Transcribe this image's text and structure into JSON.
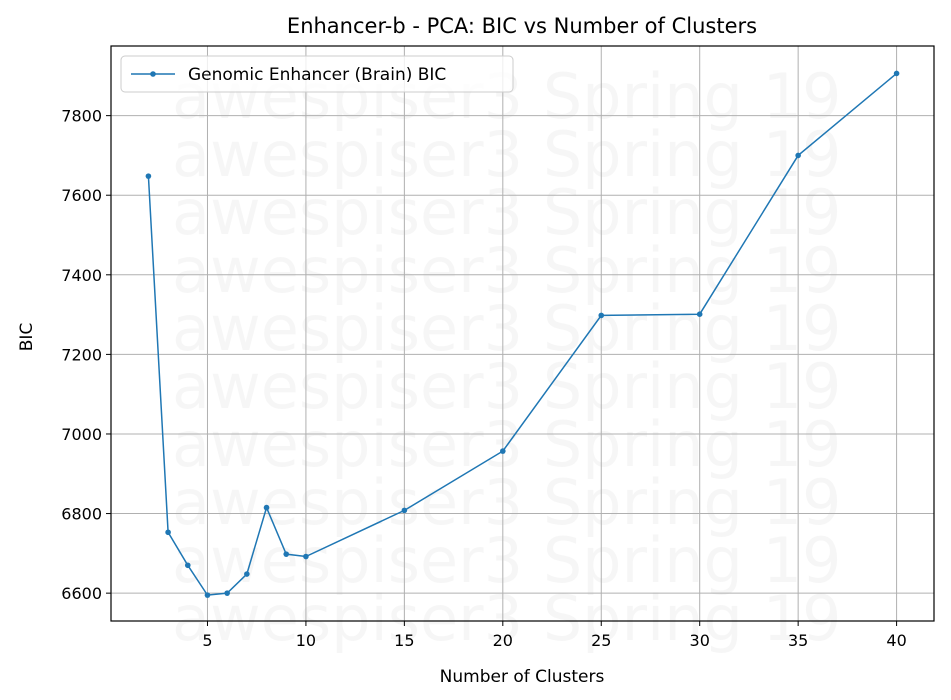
{
  "chart_data": {
    "type": "line",
    "title": "Enhancer-b - PCA: BIC vs Number of Clusters",
    "xlabel": "Number of Clusters",
    "ylabel": "BIC",
    "xlim": [
      0.1,
      41.9
    ],
    "ylim": [
      6530,
      7975
    ],
    "xticks": [
      5,
      10,
      15,
      20,
      25,
      30,
      35,
      40
    ],
    "yticks": [
      6600,
      6800,
      7000,
      7200,
      7400,
      7600,
      7800
    ],
    "grid": true,
    "legend_position": "upper-left",
    "watermark": "awespiser3 Spring 19",
    "series": [
      {
        "name": "Genomic Enhancer (Brain) BIC",
        "color": "#1f77b4",
        "x": [
          2,
          3,
          4,
          5,
          6,
          7,
          8,
          9,
          10,
          15,
          20,
          25,
          30,
          35,
          40
        ],
        "y": [
          7648,
          6753,
          6670,
          6595,
          6600,
          6648,
          6815,
          6698,
          6692,
          6808,
          6957,
          7298,
          7301,
          7700,
          7906
        ]
      }
    ]
  }
}
